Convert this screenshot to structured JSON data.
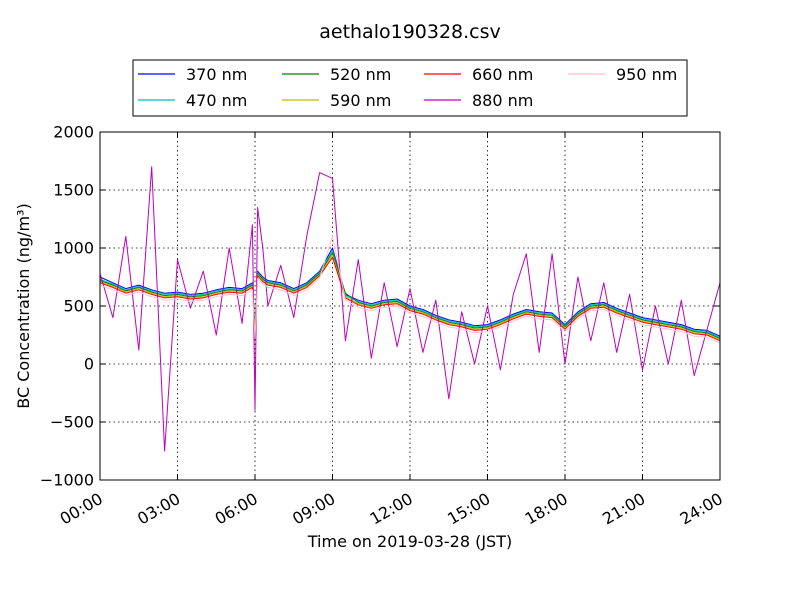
{
  "chart_data": {
    "type": "line",
    "title": "aethalo190328.csv",
    "xlabel": "Time on 2019-03-28 (JST)",
    "ylabel": "BC Concentration (ng/m³)",
    "xlim": [
      0,
      24
    ],
    "ylim": [
      -1000,
      2000
    ],
    "x_ticks": [
      0,
      3,
      6,
      9,
      12,
      15,
      18,
      21,
      24
    ],
    "x_tick_labels": [
      "00:00",
      "03:00",
      "06:00",
      "09:00",
      "12:00",
      "15:00",
      "18:00",
      "21:00",
      "24:00"
    ],
    "y_ticks": [
      -1000,
      -500,
      0,
      500,
      1000,
      1500,
      2000
    ],
    "y_tick_labels": [
      "−1000",
      "−500",
      "0",
      "500",
      "1000",
      "1500",
      "2000"
    ],
    "grid": true,
    "legend_position": "top",
    "x": [
      0.0,
      0.5,
      1.0,
      1.5,
      2.0,
      2.5,
      3.0,
      3.5,
      4.0,
      4.5,
      5.0,
      5.5,
      5.9,
      6.0,
      6.1,
      6.3,
      6.5,
      7.0,
      7.5,
      8.0,
      8.5,
      9.0,
      9.5,
      10.0,
      10.5,
      11.0,
      11.5,
      12.0,
      12.5,
      13.0,
      13.5,
      14.0,
      14.5,
      15.0,
      15.5,
      16.0,
      16.5,
      17.0,
      17.5,
      18.0,
      18.5,
      19.0,
      19.5,
      20.0,
      20.5,
      21.0,
      21.5,
      22.0,
      22.5,
      23.0,
      23.5,
      24.0
    ],
    "series": [
      {
        "name": "370 nm",
        "color": "#0000ff",
        "values": [
          750,
          700,
          650,
          680,
          640,
          610,
          620,
          600,
          610,
          640,
          660,
          650,
          700,
          300,
          800,
          750,
          720,
          700,
          650,
          700,
          800,
          1000,
          600,
          550,
          520,
          550,
          560,
          500,
          470,
          420,
          380,
          360,
          330,
          340,
          380,
          430,
          470,
          450,
          440,
          340,
          450,
          520,
          530,
          480,
          440,
          400,
          380,
          360,
          340,
          300,
          290,
          240
        ]
      },
      {
        "name": "470 nm",
        "color": "#00bfbf",
        "values": [
          730,
          690,
          640,
          670,
          630,
          600,
          610,
          590,
          600,
          630,
          650,
          640,
          690,
          280,
          790,
          740,
          710,
          690,
          640,
          690,
          790,
          980,
          590,
          540,
          510,
          540,
          550,
          490,
          460,
          410,
          370,
          350,
          320,
          330,
          370,
          420,
          460,
          440,
          430,
          330,
          440,
          510,
          520,
          470,
          430,
          390,
          370,
          350,
          330,
          290,
          280,
          230
        ]
      },
      {
        "name": "520 nm",
        "color": "#008000",
        "values": [
          720,
          680,
          630,
          660,
          620,
          590,
          600,
          580,
          590,
          620,
          640,
          630,
          680,
          260,
          780,
          730,
          700,
          680,
          630,
          680,
          780,
          960,
          610,
          530,
          500,
          530,
          540,
          480,
          450,
          400,
          360,
          340,
          310,
          320,
          360,
          410,
          450,
          430,
          420,
          320,
          430,
          500,
          510,
          460,
          420,
          380,
          360,
          340,
          320,
          280,
          270,
          220
        ]
      },
      {
        "name": "590 nm",
        "color": "#bfbf00",
        "values": [
          710,
          670,
          620,
          650,
          610,
          580,
          590,
          570,
          580,
          610,
          630,
          620,
          670,
          250,
          770,
          720,
          690,
          670,
          620,
          670,
          770,
          940,
          580,
          520,
          490,
          520,
          530,
          470,
          440,
          390,
          350,
          330,
          300,
          310,
          350,
          400,
          440,
          420,
          410,
          310,
          420,
          490,
          500,
          450,
          410,
          370,
          350,
          330,
          310,
          270,
          260,
          210
        ]
      },
      {
        "name": "660 nm",
        "color": "#ff0000",
        "values": [
          700,
          660,
          610,
          640,
          600,
          570,
          580,
          560,
          570,
          600,
          620,
          610,
          660,
          240,
          760,
          710,
          680,
          660,
          610,
          660,
          760,
          920,
          570,
          510,
          480,
          510,
          520,
          460,
          430,
          380,
          340,
          320,
          290,
          300,
          340,
          390,
          430,
          410,
          400,
          300,
          410,
          480,
          490,
          440,
          400,
          360,
          340,
          320,
          300,
          260,
          250,
          200
        ]
      },
      {
        "name": "880 nm",
        "color": "#bf00bf",
        "values": [
          780,
          400,
          1100,
          120,
          1700,
          -750,
          900,
          480,
          800,
          250,
          1000,
          350,
          1200,
          -400,
          1350,
          1000,
          500,
          850,
          400,
          1100,
          1650,
          1600,
          200,
          900,
          50,
          700,
          150,
          650,
          100,
          550,
          -300,
          450,
          0,
          500,
          -50,
          600,
          950,
          100,
          950,
          0,
          750,
          200,
          700,
          100,
          600,
          -50,
          500,
          0,
          550,
          -100,
          300,
          700
        ]
      },
      {
        "name": "950 nm",
        "color": "#ffc0cb",
        "values": [
          680,
          640,
          590,
          620,
          580,
          550,
          560,
          540,
          550,
          580,
          600,
          590,
          640,
          220,
          740,
          690,
          660,
          640,
          590,
          640,
          740,
          1100,
          550,
          490,
          460,
          490,
          500,
          440,
          410,
          360,
          320,
          300,
          270,
          280,
          320,
          370,
          410,
          390,
          380,
          280,
          390,
          460,
          470,
          420,
          380,
          340,
          320,
          300,
          280,
          240,
          230,
          180
        ]
      }
    ]
  }
}
